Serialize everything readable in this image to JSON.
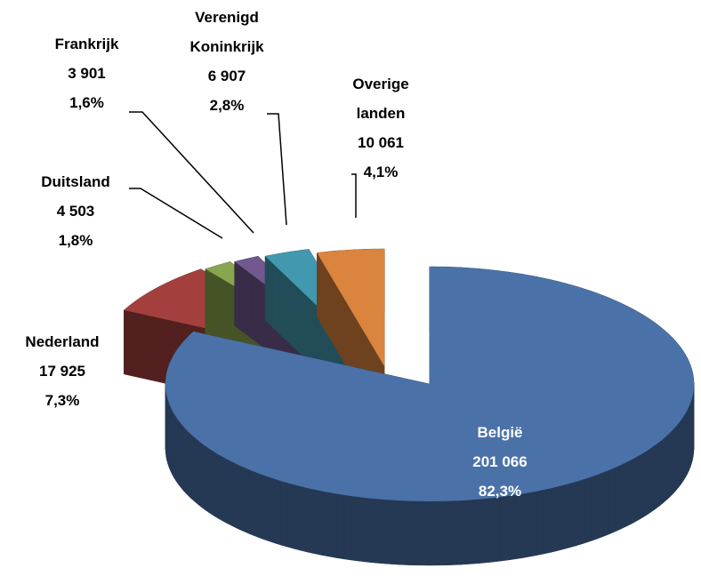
{
  "chart_data": {
    "type": "pie3d",
    "categories": [
      "België",
      "Nederland",
      "Duitsland",
      "Frankrijk",
      "Verenigd Koninkrijk",
      "Overige landen"
    ],
    "values": [
      201066,
      17925,
      4503,
      3901,
      6907,
      10061
    ],
    "value_labels": [
      "201 066",
      "17 925",
      "4 503",
      "3 901",
      "6 907",
      "10 061"
    ],
    "percents": [
      82.3,
      7.3,
      1.8,
      1.6,
      2.8,
      4.1
    ],
    "percent_labels": [
      "82,3%",
      "7,3%",
      "1,8%",
      "1,6%",
      "2,8%",
      "4,1%"
    ],
    "colors": [
      "#4a72a8",
      "#a3403d",
      "#89a54e",
      "#71588f",
      "#4198af",
      "#db843d"
    ]
  }
}
